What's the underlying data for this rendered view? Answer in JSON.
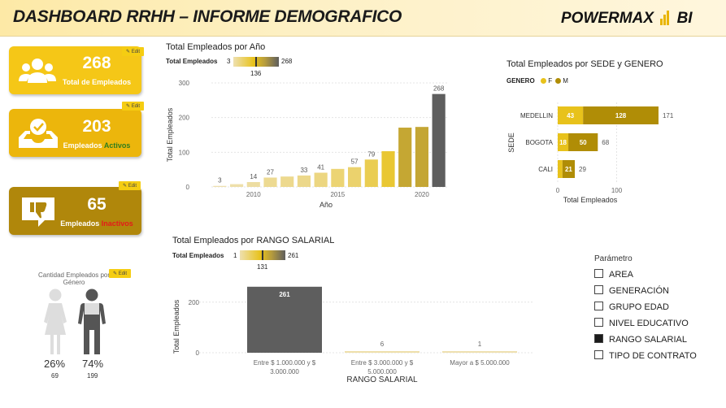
{
  "header": {
    "title": "DASHBOARD RRHH – INFORME DEMOGRAFICO",
    "brand_left": "POWERMAX",
    "brand_right": "BI"
  },
  "kpis": {
    "total": {
      "value": "268",
      "label": "Total de Empleados",
      "edit": "Edit"
    },
    "active": {
      "value": "203",
      "label_prefix": "Empleados ",
      "label_highlight": "Activos",
      "edit": "Edit"
    },
    "inactive": {
      "value": "65",
      "label_prefix": "Empleados ",
      "label_highlight": "Inactivos",
      "edit": "Edit"
    }
  },
  "colors": {
    "gold": "#e8c21b",
    "dark_gold": "#b08d06",
    "gray": "#6b6b6b",
    "active_green": "#2e7d1e",
    "inactive_red": "#e31b1b"
  },
  "gender": {
    "title": "Cantidad Empleados por Género",
    "edit": "Edit",
    "female_pct": "26%",
    "male_pct": "74%",
    "female_count": "69",
    "male_count": "199"
  },
  "chart_year": {
    "title": "Total Empleados por Año",
    "legend_label": "Total Empleados",
    "legend_min": "3",
    "legend_max": "268",
    "legend_mid": "136",
    "chart_data": {
      "type": "bar",
      "x": [
        2008,
        2009,
        2010,
        2011,
        2012,
        2013,
        2014,
        2015,
        2016,
        2017,
        2018,
        2019,
        2020,
        2021
      ],
      "values": [
        3,
        8,
        14,
        27,
        30,
        33,
        41,
        52,
        57,
        79,
        103,
        171,
        173,
        268
      ],
      "data_labels": {
        "2008": "3",
        "2010": "14",
        "2011": "27",
        "2013": "33",
        "2014": "41",
        "2016": "57",
        "2017": "79",
        "2021": "268"
      },
      "xticks": [
        "2010",
        "2015",
        "2020"
      ],
      "yticks": [
        "0",
        "100",
        "200",
        "300"
      ],
      "ylim": [
        0,
        300
      ],
      "xlabel": "Año",
      "ylabel": "Total Empleados"
    }
  },
  "chart_sede": {
    "title": "Total Empleados por SEDE y GENERO",
    "legend_title": "GENERO",
    "legend_f": "F",
    "legend_m": "M",
    "chart_data": {
      "type": "bar",
      "orientation": "horizontal-stacked",
      "categories": [
        "MEDELLIN",
        "BOGOTA",
        "CALI"
      ],
      "series": [
        {
          "name": "F",
          "values": [
            43,
            18,
            8
          ]
        },
        {
          "name": "M",
          "values": [
            128,
            50,
            21
          ]
        }
      ],
      "totals": [
        "171",
        "68",
        "29"
      ],
      "seg_labels": [
        [
          "43",
          "128"
        ],
        [
          "18",
          "50"
        ],
        [
          "",
          "21"
        ]
      ],
      "xticks": [
        "0",
        "100"
      ],
      "xlim": [
        0,
        200
      ],
      "xlabel": "Total Empleados",
      "ylabel": "SEDE"
    }
  },
  "chart_salary": {
    "title": "Total Empleados por RANGO SALARIAL",
    "legend_label": "Total Empleados",
    "legend_min": "1",
    "legend_max": "261",
    "legend_mid": "131",
    "chart_data": {
      "type": "bar",
      "categories": [
        "Entre $ 1.000.000 y $ 3.000.000",
        "Entre $ 3.000.000 y $ 5.000.000",
        "Mayor a $ 5.000.000"
      ],
      "cat_lines": [
        [
          "Entre $ 1.000.000 y $",
          "3.000.000"
        ],
        [
          "Entre $ 3.000.000 y $",
          "5.000.000"
        ],
        [
          "Mayor a $ 5.000.000"
        ]
      ],
      "values": [
        261,
        6,
        1
      ],
      "labels": [
        "261",
        "6",
        "1"
      ],
      "yticks": [
        "0",
        "200"
      ],
      "ylim": [
        0,
        270
      ],
      "xlabel": "RANGO SALARIAL",
      "ylabel": "Total Empleados"
    }
  },
  "parameter": {
    "title": "Parámetro",
    "items": [
      {
        "label": "AREA",
        "checked": false
      },
      {
        "label": "GENERACIÓN",
        "checked": false
      },
      {
        "label": "GRUPO EDAD",
        "checked": false
      },
      {
        "label": "NIVEL EDUCATIVO",
        "checked": false
      },
      {
        "label": "RANGO SALARIAL",
        "checked": true
      },
      {
        "label": "TIPO DE CONTRATO",
        "checked": false
      }
    ]
  }
}
